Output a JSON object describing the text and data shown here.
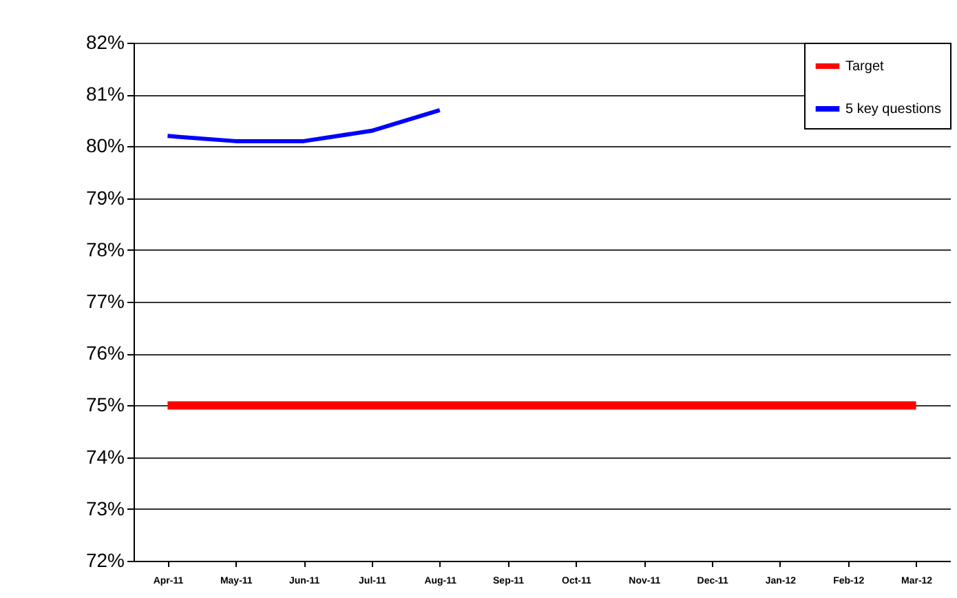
{
  "chart_data": {
    "type": "line",
    "categories": [
      "Apr-11",
      "May-11",
      "Jun-11",
      "Jul-11",
      "Aug-11",
      "Sep-11",
      "Oct-11",
      "Nov-11",
      "Dec-11",
      "Jan-12",
      "Feb-12",
      "Mar-12"
    ],
    "series": [
      {
        "name": "Target",
        "color": "#ff0000",
        "values": [
          75,
          75,
          75,
          75,
          75,
          75,
          75,
          75,
          75,
          75,
          75,
          75
        ]
      },
      {
        "name": "5 key questions",
        "color": "#0000ff",
        "values": [
          80.2,
          80.1,
          80.1,
          80.3,
          80.7,
          null,
          null,
          null,
          null,
          null,
          null,
          null
        ]
      }
    ],
    "ylim": [
      72,
      82
    ],
    "yticks": [
      {
        "value": 72,
        "label": "72%"
      },
      {
        "value": 73,
        "label": "73%"
      },
      {
        "value": 74,
        "label": "74%"
      },
      {
        "value": 75,
        "label": "75%"
      },
      {
        "value": 76,
        "label": "76%"
      },
      {
        "value": 77,
        "label": "77%"
      },
      {
        "value": 78,
        "label": "78%"
      },
      {
        "value": 79,
        "label": "79%"
      },
      {
        "value": 80,
        "label": "80%"
      },
      {
        "value": 81,
        "label": "81%"
      },
      {
        "value": 82,
        "label": "82%"
      }
    ],
    "grid": "y",
    "legend": "top right"
  }
}
